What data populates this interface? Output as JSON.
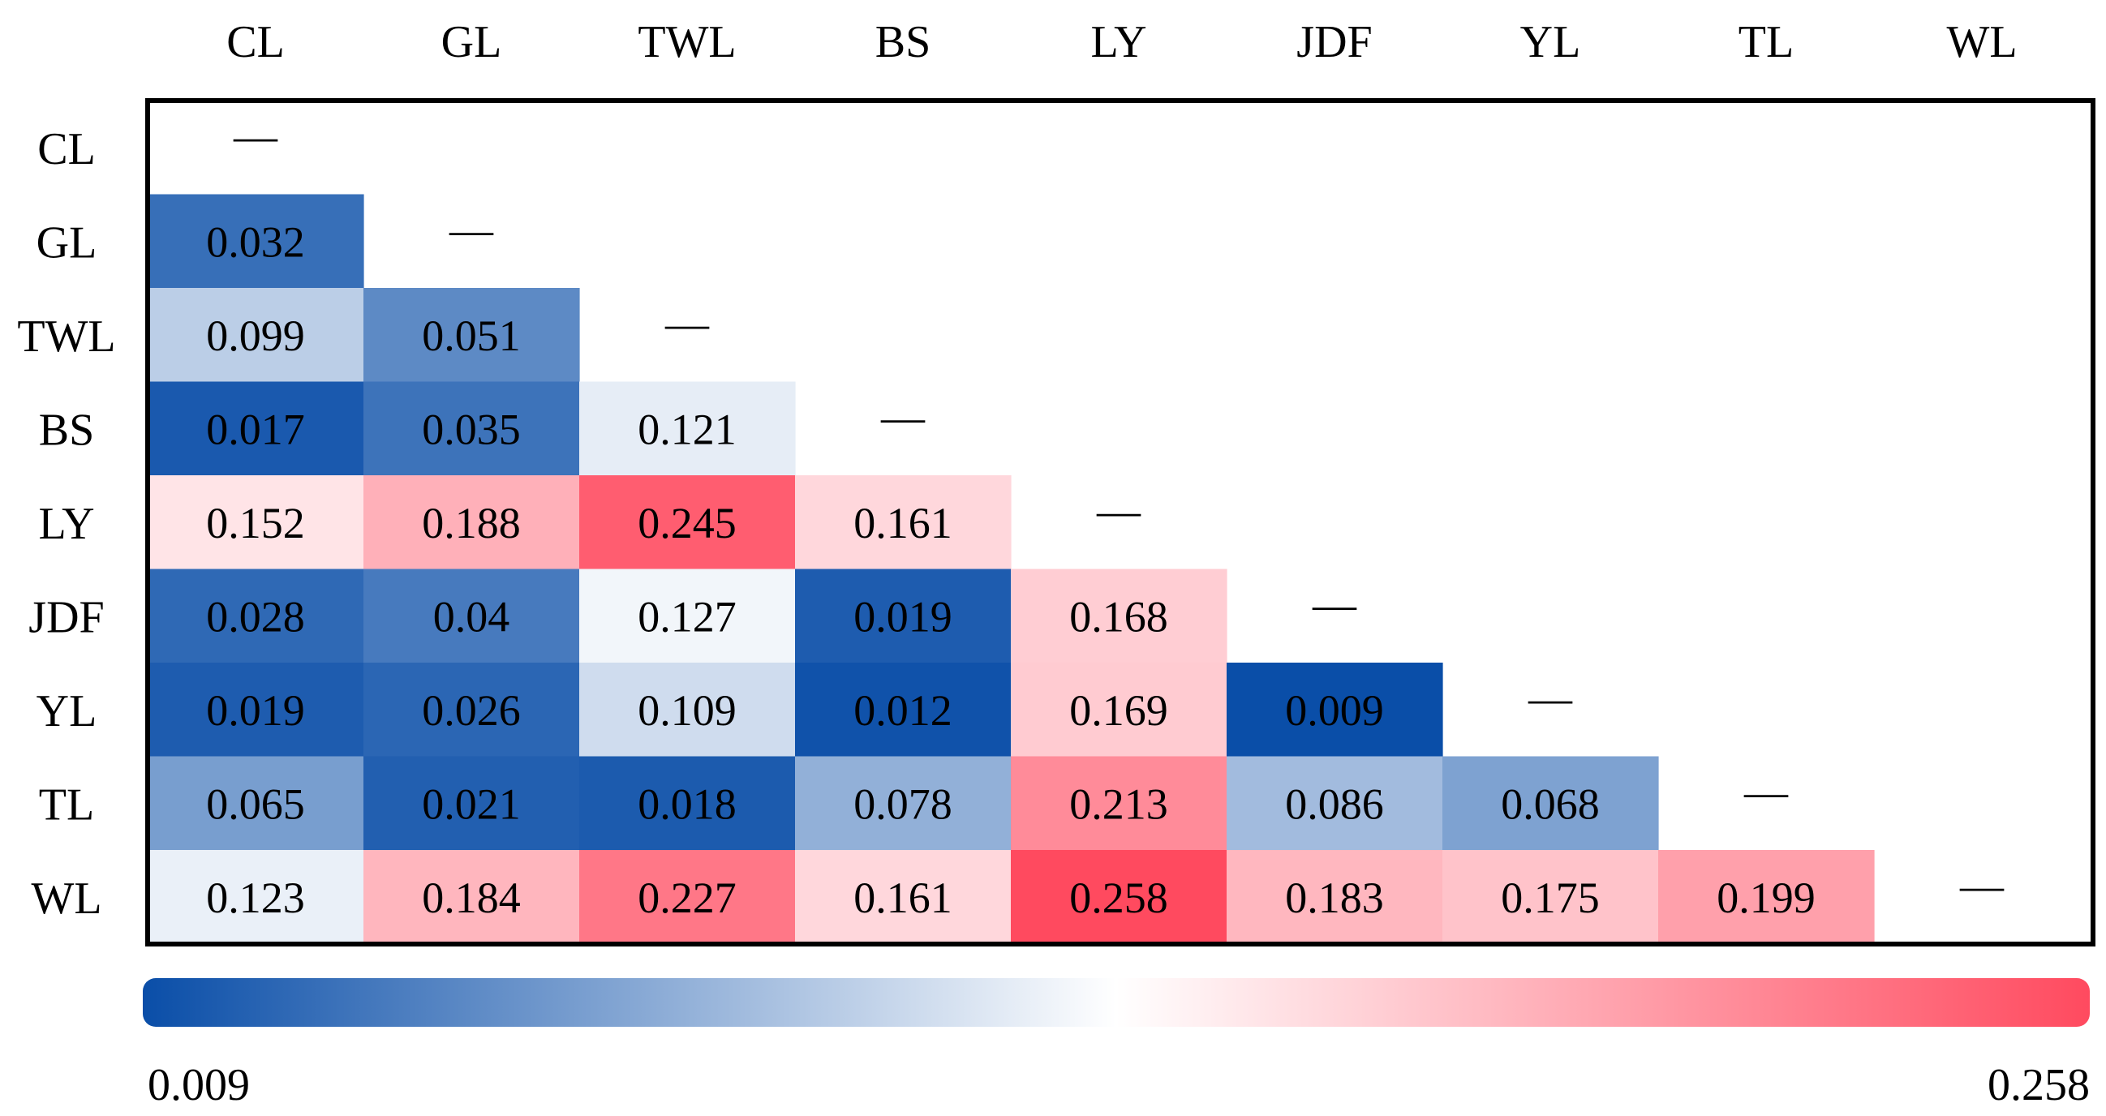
{
  "chart_data": {
    "type": "heatmap",
    "title": "",
    "labels": [
      "CL",
      "GL",
      "TWL",
      "BS",
      "LY",
      "JDF",
      "YL",
      "TL",
      "WL"
    ],
    "diagonal_marker": "—",
    "matrix": [
      [
        null
      ],
      [
        0.032,
        null
      ],
      [
        0.099,
        0.051,
        null
      ],
      [
        0.017,
        0.035,
        0.121,
        null
      ],
      [
        0.152,
        0.188,
        0.245,
        0.161,
        null
      ],
      [
        0.028,
        0.04,
        0.127,
        0.019,
        0.168,
        null
      ],
      [
        0.019,
        0.026,
        0.109,
        0.012,
        0.169,
        0.009,
        null
      ],
      [
        0.065,
        0.021,
        0.018,
        0.078,
        0.213,
        0.086,
        0.068,
        null
      ],
      [
        0.123,
        0.184,
        0.227,
        0.161,
        0.258,
        0.183,
        0.175,
        0.199,
        null
      ]
    ],
    "display_values": [
      [],
      [
        "0.032"
      ],
      [
        "0.099",
        "0.051"
      ],
      [
        "0.017",
        "0.035",
        "0.121"
      ],
      [
        "0.152",
        "0.188",
        "0.245",
        "0.161"
      ],
      [
        "0.028",
        "0.04",
        "0.127",
        "0.019",
        "0.168"
      ],
      [
        "0.019",
        "0.026",
        "0.109",
        "0.012",
        "0.169",
        "0.009"
      ],
      [
        "0.065",
        "0.021",
        "0.018",
        "0.078",
        "0.213",
        "0.086",
        "0.068"
      ],
      [
        "0.123",
        "0.184",
        "0.227",
        "0.161",
        "0.258",
        "0.183",
        "0.175",
        "0.199"
      ]
    ],
    "colorbar": {
      "min": 0.009,
      "max": 0.258,
      "min_label": "0.009",
      "max_label": "0.258",
      "colors": [
        "#0a4ea8",
        "#ffffff",
        "#ff4a5f"
      ]
    }
  }
}
